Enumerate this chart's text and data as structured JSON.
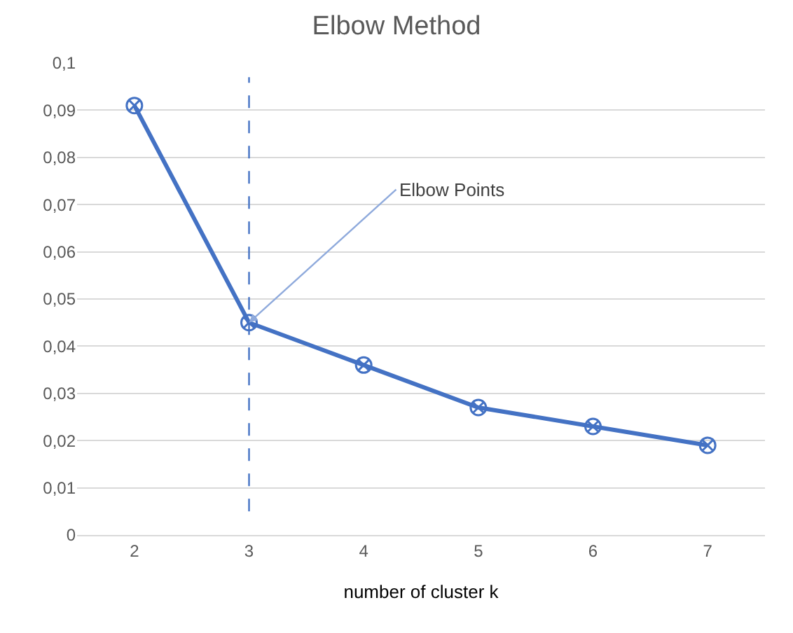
{
  "chart_data": {
    "type": "line",
    "title": "Elbow Method",
    "xlabel": "number of cluster k",
    "x": [
      2,
      3,
      4,
      5,
      6,
      7
    ],
    "series": [
      {
        "color": "#4472c4",
        "values": [
          0.091,
          0.045,
          0.036,
          0.027,
          0.023,
          0.019
        ]
      }
    ],
    "xlim": [
      1.5,
      7.5
    ],
    "xticks": [
      2,
      3,
      4,
      5,
      6,
      7
    ],
    "ylim": [
      0,
      0.1
    ],
    "yticks": [
      {
        "value": 0,
        "label": "0"
      },
      {
        "value": 0.01,
        "label": "0,01"
      },
      {
        "value": 0.02,
        "label": "0,02"
      },
      {
        "value": 0.03,
        "label": "0,03"
      },
      {
        "value": 0.04,
        "label": "0,04"
      },
      {
        "value": 0.05,
        "label": "0,05"
      },
      {
        "value": 0.06,
        "label": "0,06"
      },
      {
        "value": 0.07,
        "label": "0,07"
      },
      {
        "value": 0.08,
        "label": "0,08"
      },
      {
        "value": 0.09,
        "label": "0,09"
      },
      {
        "value": 0.1,
        "label": "0,1"
      }
    ],
    "ref_lines": [
      {
        "axis": "x",
        "value": 3,
        "color": "#4472c4",
        "line_style": "dashed"
      }
    ],
    "annotations": [
      {
        "text": "Elbow Points",
        "x": 3,
        "y": 0.045
      }
    ],
    "grid": "y",
    "marker": "cross",
    "line_style": "solid"
  }
}
